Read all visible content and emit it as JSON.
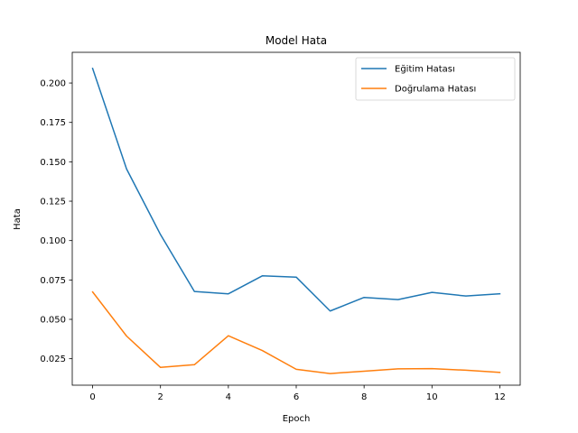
{
  "chart_data": {
    "type": "line",
    "title": "Model Hata",
    "xlabel": "Epoch",
    "ylabel": "Hata",
    "x": [
      0,
      1,
      2,
      3,
      4,
      5,
      6,
      7,
      8,
      9,
      10,
      11,
      12
    ],
    "xlim": [
      -0.6,
      12.6
    ],
    "ylim": [
      0.0082,
      0.2195
    ],
    "xticks": [
      "0",
      "2",
      "4",
      "6",
      "8",
      "10",
      "12"
    ],
    "yticks": [
      "0.025",
      "0.050",
      "0.075",
      "0.100",
      "0.125",
      "0.150",
      "0.175",
      "0.200"
    ],
    "grid": false,
    "legend_position": "top-right",
    "series": [
      {
        "name": "Eğitim Hatası",
        "color": "#1f77b4",
        "values": [
          0.2093,
          0.1455,
          0.1038,
          0.0677,
          0.0662,
          0.0776,
          0.0768,
          0.0553,
          0.0639,
          0.0625,
          0.0671,
          0.0648,
          0.0662
        ]
      },
      {
        "name": "Doğrulama Hatası",
        "color": "#ff7f0e",
        "values": [
          0.0674,
          0.0394,
          0.0195,
          0.0212,
          0.0396,
          0.0302,
          0.0183,
          0.0156,
          0.0171,
          0.0186,
          0.0187,
          0.0177,
          0.0163
        ]
      }
    ]
  }
}
